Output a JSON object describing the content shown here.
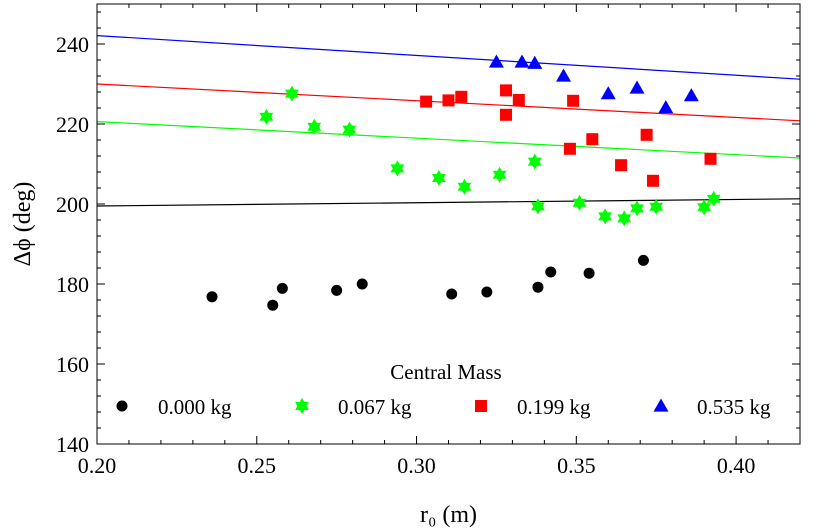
{
  "chart_data": {
    "type": "scatter",
    "title": "",
    "xlabel": "r₀ (m)",
    "ylabel": "Δϕ (deg)",
    "xlim": [
      0.2,
      0.42
    ],
    "ylim": [
      140,
      250
    ],
    "xticks": [
      0.2,
      0.25,
      0.3,
      0.35,
      0.4
    ],
    "xtick_labels": [
      "0.20",
      "0.25",
      "0.30",
      "0.35",
      "0.40"
    ],
    "yticks": [
      140,
      160,
      180,
      200,
      220,
      240
    ],
    "ytick_labels": [
      "140",
      "160",
      "180",
      "200",
      "220",
      "240"
    ],
    "grid": false,
    "legend": {
      "title": "Central Mass",
      "placement": "bottom",
      "entries": [
        "0.000 kg",
        "0.067 kg",
        "0.199 kg",
        "0.535 kg"
      ]
    },
    "series": [
      {
        "name": "0.000 kg",
        "color": "#000000",
        "marker": "circle",
        "points": [
          [
            0.236,
            176.8
          ],
          [
            0.255,
            174.7
          ],
          [
            0.258,
            178.9
          ],
          [
            0.275,
            178.4
          ],
          [
            0.283,
            180.0
          ],
          [
            0.311,
            177.5
          ],
          [
            0.322,
            178.0
          ],
          [
            0.338,
            179.2
          ],
          [
            0.342,
            183.0
          ],
          [
            0.354,
            182.7
          ],
          [
            0.371,
            185.9
          ]
        ],
        "fit": [
          [
            0.2,
            199.5
          ],
          [
            0.42,
            201.3
          ]
        ]
      },
      {
        "name": "0.067 kg",
        "color": "#00ff00",
        "marker": "star",
        "points": [
          [
            0.253,
            221.8
          ],
          [
            0.261,
            227.6
          ],
          [
            0.268,
            219.3
          ],
          [
            0.279,
            218.6
          ],
          [
            0.294,
            208.9
          ],
          [
            0.307,
            206.5
          ],
          [
            0.315,
            204.3
          ],
          [
            0.326,
            207.3
          ],
          [
            0.337,
            210.6
          ],
          [
            0.338,
            199.4
          ],
          [
            0.351,
            200.3
          ],
          [
            0.359,
            196.9
          ],
          [
            0.365,
            196.4
          ],
          [
            0.369,
            198.9
          ],
          [
            0.375,
            199.3
          ],
          [
            0.39,
            199.2
          ],
          [
            0.393,
            201.3
          ]
        ],
        "fit": [
          [
            0.2,
            220.6
          ],
          [
            0.42,
            211.5
          ]
        ]
      },
      {
        "name": "0.199 kg",
        "color": "#ff0000",
        "marker": "square",
        "points": [
          [
            0.303,
            225.6
          ],
          [
            0.31,
            225.9
          ],
          [
            0.314,
            226.8
          ],
          [
            0.328,
            228.4
          ],
          [
            0.328,
            222.3
          ],
          [
            0.332,
            226.0
          ],
          [
            0.348,
            213.8
          ],
          [
            0.349,
            225.8
          ],
          [
            0.355,
            216.2
          ],
          [
            0.364,
            209.7
          ],
          [
            0.372,
            217.3
          ],
          [
            0.374,
            205.8
          ],
          [
            0.392,
            211.3
          ]
        ],
        "fit": [
          [
            0.2,
            230.0
          ],
          [
            0.42,
            220.8
          ]
        ]
      },
      {
        "name": "0.535 kg",
        "color": "#0000ff",
        "marker": "triangle",
        "points": [
          [
            0.325,
            235.5
          ],
          [
            0.333,
            235.5
          ],
          [
            0.337,
            235.2
          ],
          [
            0.346,
            232.0
          ],
          [
            0.36,
            227.6
          ],
          [
            0.369,
            229.0
          ],
          [
            0.378,
            224.1
          ],
          [
            0.386,
            227.1
          ]
        ],
        "fit": [
          [
            0.2,
            242.1
          ],
          [
            0.42,
            231.2
          ]
        ]
      }
    ]
  }
}
